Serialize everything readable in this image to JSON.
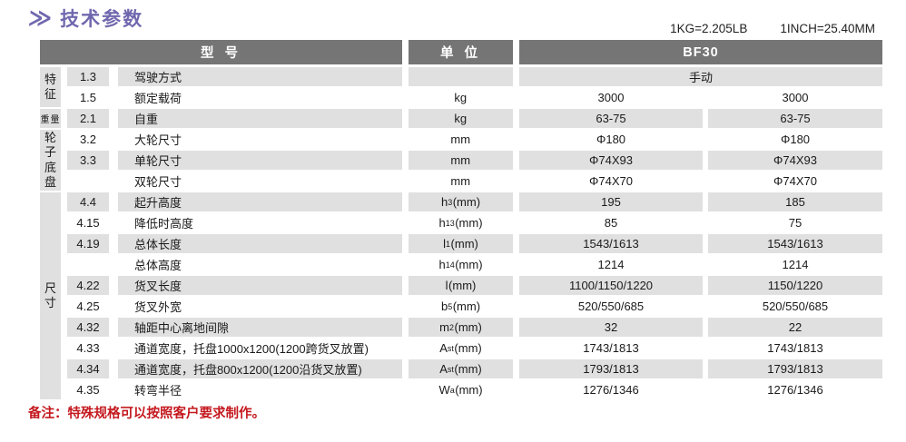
{
  "header": {
    "chevron": "≫",
    "title": "技术参数",
    "conversions": [
      "1KG=2.205LB",
      "1INCH=25.40MM"
    ]
  },
  "colors": {
    "accent_purple": "#6f68ae",
    "header_gray": "#757575",
    "stripe_gray": "#e0e0e0",
    "note_red": "#c4191f"
  },
  "table": {
    "headers": {
      "model": "型 号",
      "unit": "单 位",
      "model_name": "BF30"
    },
    "categories": [
      {
        "label": "特征",
        "start": 1,
        "span": 2,
        "orient": "vertical"
      },
      {
        "label": "重量",
        "start": 3,
        "span": 1,
        "orient": "horizontal"
      },
      {
        "label": "轮子底盘",
        "start": 4,
        "span": 3,
        "orient": "vertical"
      },
      {
        "label": "尺寸",
        "start": 7,
        "span": 10,
        "orient": "vertical"
      }
    ],
    "rows": [
      {
        "num": "1.3",
        "desc": "驾驶方式",
        "unit_pre": "",
        "unit_sub": "",
        "unit_post": "",
        "val1": "手动",
        "val2": "",
        "span_values": true
      },
      {
        "num": "1.5",
        "desc": "额定载荷",
        "unit_pre": "kg",
        "unit_sub": "",
        "unit_post": "",
        "val1": "3000",
        "val2": "3000",
        "span_values": false
      },
      {
        "num": "2.1",
        "desc": "自重",
        "unit_pre": "kg",
        "unit_sub": "",
        "unit_post": "",
        "val1": "63-75",
        "val2": "63-75",
        "span_values": false
      },
      {
        "num": "3.2",
        "desc": "大轮尺寸",
        "unit_pre": "mm",
        "unit_sub": "",
        "unit_post": "",
        "val1": "Φ180",
        "val2": "Φ180",
        "span_values": false
      },
      {
        "num": "3.3",
        "desc": "单轮尺寸",
        "unit_pre": "mm",
        "unit_sub": "",
        "unit_post": "",
        "val1": "Φ74X93",
        "val2": "Φ74X93",
        "span_values": false
      },
      {
        "num": "",
        "desc": "双轮尺寸",
        "unit_pre": "mm",
        "unit_sub": "",
        "unit_post": "",
        "val1": "Φ74X70",
        "val2": "Φ74X70",
        "span_values": false
      },
      {
        "num": "4.4",
        "desc": "起升高度",
        "unit_pre": "h",
        "unit_sub": "3",
        "unit_post": "(mm)",
        "val1": "195",
        "val2": "185",
        "span_values": false
      },
      {
        "num": "4.15",
        "desc": "降低时高度",
        "unit_pre": "h",
        "unit_sub": "13",
        "unit_post": "(mm)",
        "val1": "85",
        "val2": "75",
        "span_values": false
      },
      {
        "num": "4.19",
        "desc": "总体长度",
        "unit_pre": "l",
        "unit_sub": "1",
        "unit_post": "(mm)",
        "val1": "1543/1613",
        "val2": "1543/1613",
        "span_values": false
      },
      {
        "num": "",
        "desc": "总体高度",
        "unit_pre": "h",
        "unit_sub": "14",
        "unit_post": "(mm)",
        "val1": "1214",
        "val2": "1214",
        "span_values": false
      },
      {
        "num": "4.22",
        "desc": "货叉长度",
        "unit_pre": "l",
        "unit_sub": "",
        "unit_post": "(mm)",
        "val1": "1100/1150/1220",
        "val2": "1150/1220",
        "span_values": false
      },
      {
        "num": "4.25",
        "desc": "货叉外宽",
        "unit_pre": "b",
        "unit_sub": "5",
        "unit_post": "(mm)",
        "val1": "520/550/685",
        "val2": "520/550/685",
        "span_values": false
      },
      {
        "num": "4.32",
        "desc": "轴距中心离地间隙",
        "unit_pre": "m",
        "unit_sub": "2",
        "unit_post": "(mm)",
        "val1": "32",
        "val2": "22",
        "span_values": false
      },
      {
        "num": "4.33",
        "desc": "通道宽度，托盘1000x1200(1200跨货叉放置)",
        "unit_pre": "A",
        "unit_sub": "st",
        "unit_post": "(mm)",
        "val1": "1743/1813",
        "val2": "1743/1813",
        "span_values": false
      },
      {
        "num": "4.34",
        "desc": "通道宽度，托盘800x1200(1200沿货叉放置)",
        "unit_pre": "A",
        "unit_sub": "st",
        "unit_post": "(mm)",
        "val1": "1793/1813",
        "val2": "1793/1813",
        "span_values": false
      },
      {
        "num": "4.35",
        "desc": "转弯半径",
        "unit_pre": "W",
        "unit_sub": "a",
        "unit_post": "(mm)",
        "val1": "1276/1346",
        "val2": "1276/1346",
        "span_values": false
      }
    ]
  },
  "note": {
    "text": "备注：特殊规格可以按照客户要求制作。"
  }
}
